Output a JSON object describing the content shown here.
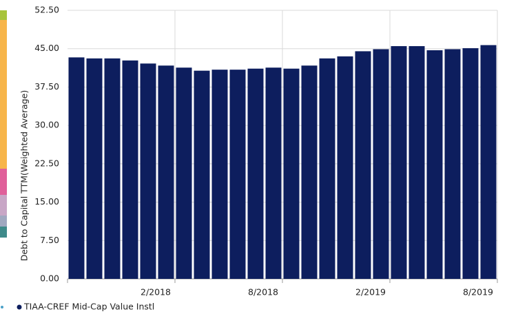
{
  "chart_data": {
    "type": "bar",
    "y_axis_label": "Debt to Capital TTM(Weighted Average)",
    "categories": [
      null,
      null,
      null,
      null,
      null,
      null,
      null,
      null,
      null,
      null,
      null,
      null,
      null,
      null,
      null,
      null,
      null,
      null,
      null,
      null,
      null,
      null,
      null,
      null
    ],
    "xtick_labels": [
      "2/2018",
      "8/2018",
      "2/2019",
      "8/2019"
    ],
    "series": [
      {
        "name": "TIAA-CREF Mid-Cap Value Instl",
        "color": "#0d1e5e",
        "values": [
          43.3,
          43.1,
          43.1,
          42.7,
          42.1,
          41.7,
          41.3,
          40.7,
          40.9,
          40.9,
          41.1,
          41.3,
          41.1,
          41.7,
          43.1,
          43.5,
          44.5,
          44.9,
          45.5,
          45.5,
          44.7,
          44.9,
          45.1,
          45.7
        ]
      }
    ],
    "ylim": [
      0,
      52.5
    ],
    "yticks": [
      {
        "value": 0,
        "label": "0.00"
      },
      {
        "value": 7.5,
        "label": "7.50"
      },
      {
        "value": 15,
        "label": "15.00"
      },
      {
        "value": 22.5,
        "label": "22.50"
      },
      {
        "value": 30,
        "label": "30.00"
      },
      {
        "value": 37.5,
        "label": "37.50"
      },
      {
        "value": 45,
        "label": "45.00"
      },
      {
        "value": 52.5,
        "label": "52.50"
      }
    ],
    "grid": true
  }
}
